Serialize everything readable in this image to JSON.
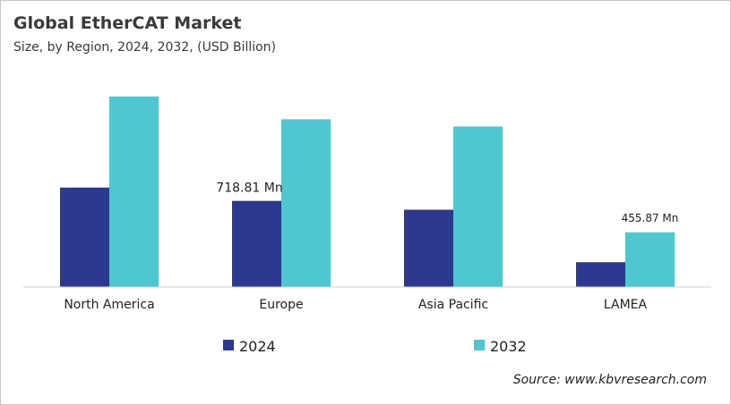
{
  "chart_data": {
    "type": "bar",
    "title": "Global EtherCAT Market",
    "subtitle": "Size, by Region, 2024, 2032, (USD Billion)",
    "categories": [
      "North America",
      "Europe",
      "Asia Pacific",
      "LAMEA"
    ],
    "series": [
      {
        "name": "2024",
        "color": "#2b3990",
        "values": [
          830,
          718.81,
          645,
          207
        ]
      },
      {
        "name": "2032",
        "color": "#4fc6d0",
        "values": [
          1590,
          1400,
          1340,
          455.87
        ]
      }
    ],
    "data_labels": [
      {
        "series": 0,
        "index": 1,
        "text": "718.81 Mn"
      },
      {
        "series": 1,
        "index": 3,
        "text": "455.87 Mn"
      }
    ],
    "ylim": [
      0,
      2000
    ],
    "grid": false,
    "legend": "bottom",
    "source": "Source: www.kbvresearch.com"
  }
}
